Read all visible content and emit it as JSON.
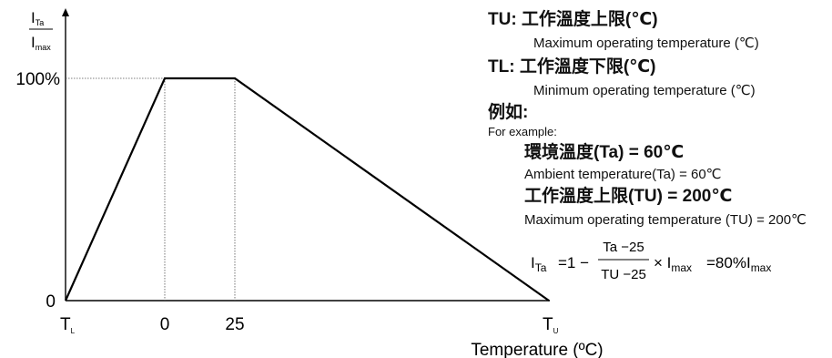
{
  "axis": {
    "y_numerator": "I",
    "y_numerator_sub": "Ta",
    "y_denominator": "I",
    "y_denominator_sub": "max",
    "tick_100": "100%",
    "tick_0_y": "0",
    "x_tick_TL": "T",
    "x_tick_TL_sub": "L",
    "x_tick_0": "0",
    "x_tick_25": "25",
    "x_tick_TU": "T",
    "x_tick_TU_sub": "U",
    "x_label": "Temperature (ºC)"
  },
  "curve": {
    "points": [
      {
        "x": "TL",
        "y": 0
      },
      {
        "x": 0,
        "y": 100
      },
      {
        "x": 25,
        "y": 100
      },
      {
        "x": "TU",
        "y": 0
      }
    ]
  },
  "notes": {
    "tu_line": "TU: 工作溫度上限(℃)",
    "tu_en": "Maximum operating temperature (℃)",
    "tl_line": "TL: 工作溫度下限(℃)",
    "tl_en": "Minimum operating temperature (℃)",
    "example_cn": "例如:",
    "example_en": "For example:",
    "ambient_cn": "環境溫度(Ta) = 60℃",
    "ambient_en": "Ambient temperature(Ta) = 60℃",
    "max_cn": "工作溫度上限(TU) = 200℃",
    "max_en": "Maximum operating temperature (TU) = 200℃"
  },
  "formula": {
    "lhs": "I",
    "lhs_sub": "Ta",
    "eq1": "=1 −",
    "numerator": "Ta −25",
    "denominator": "TU −25",
    "times": "× I",
    "times_sub": "max",
    "result": "=80%I",
    "result_sub": "max"
  }
}
